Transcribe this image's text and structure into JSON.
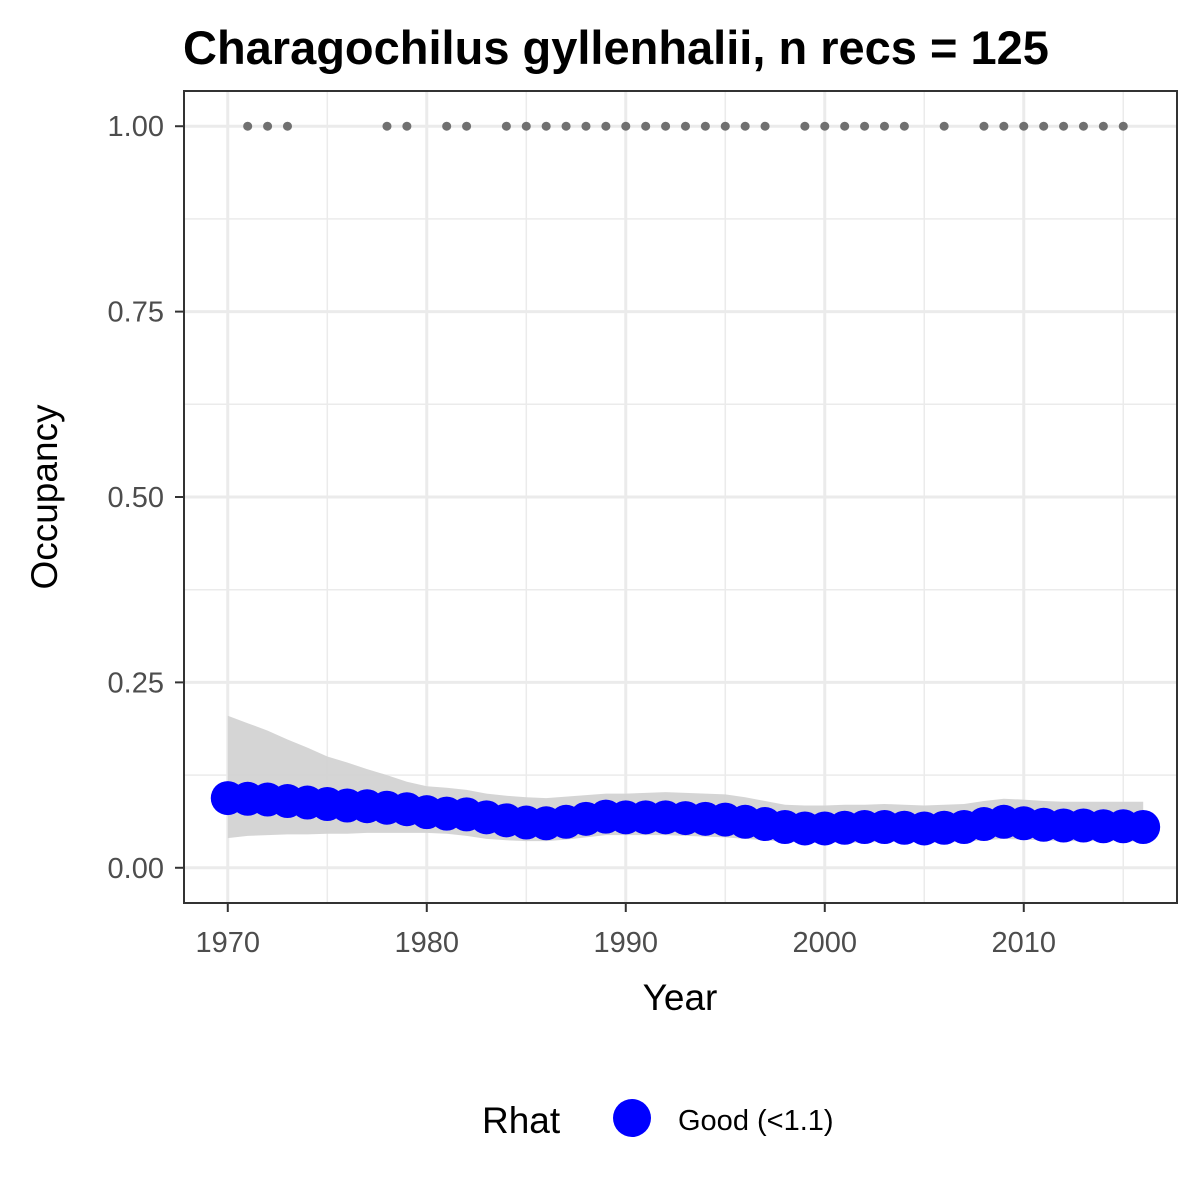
{
  "chart_data": {
    "type": "line",
    "title": "Charagochilus gyllenhalii, n recs = 125",
    "xlabel": "Year",
    "ylabel": "Occupancy",
    "xlim": [
      1967.8,
      2017.7
    ],
    "ylim": [
      -0.0475,
      1.0475
    ],
    "x_ticks": [
      1970,
      1980,
      1990,
      2000,
      2010
    ],
    "x_tick_labels": [
      "1970",
      "1980",
      "1990",
      "2000",
      "2010"
    ],
    "y_ticks": [
      0,
      0.25,
      0.5,
      0.75,
      1.0
    ],
    "y_tick_labels": [
      "0.00",
      "0.25",
      "0.50",
      "0.75",
      "1.00"
    ],
    "grid": true,
    "legend": {
      "position": "bottom",
      "title": "Rhat",
      "entries": [
        {
          "label": "Good (<1.1)",
          "color": "#0000ff"
        }
      ]
    },
    "colors": {
      "estimate": "#0000ff",
      "ribbon": "#d3d3d3",
      "records": "#707070",
      "grid": "#ebebeb",
      "panel_border": "#333333"
    },
    "series": [
      {
        "name": "Good (<1.1)",
        "x": [
          1970,
          1971,
          1972,
          1973,
          1974,
          1975,
          1976,
          1977,
          1978,
          1979,
          1980,
          1981,
          1982,
          1983,
          1984,
          1985,
          1986,
          1987,
          1988,
          1989,
          1990,
          1991,
          1992,
          1993,
          1994,
          1995,
          1996,
          1997,
          1998,
          1999,
          2000,
          2001,
          2002,
          2003,
          2004,
          2005,
          2006,
          2007,
          2008,
          2009,
          2010,
          2011,
          2012,
          2013,
          2014,
          2015,
          2016
        ],
        "y": [
          0.094,
          0.093,
          0.092,
          0.09,
          0.088,
          0.086,
          0.084,
          0.083,
          0.081,
          0.079,
          0.075,
          0.073,
          0.072,
          0.068,
          0.064,
          0.061,
          0.06,
          0.062,
          0.066,
          0.069,
          0.068,
          0.068,
          0.068,
          0.067,
          0.066,
          0.065,
          0.062,
          0.059,
          0.055,
          0.053,
          0.053,
          0.054,
          0.055,
          0.055,
          0.054,
          0.053,
          0.054,
          0.055,
          0.059,
          0.062,
          0.06,
          0.058,
          0.057,
          0.057,
          0.056,
          0.056,
          0.055
        ],
        "lower": [
          0.04,
          0.043,
          0.044,
          0.045,
          0.045,
          0.046,
          0.046,
          0.047,
          0.047,
          0.047,
          0.047,
          0.046,
          0.043,
          0.039,
          0.037,
          0.036,
          0.036,
          0.038,
          0.041,
          0.044,
          0.044,
          0.044,
          0.044,
          0.043,
          0.042,
          0.041,
          0.039,
          0.037,
          0.035,
          0.034,
          0.034,
          0.034,
          0.034,
          0.035,
          0.035,
          0.034,
          0.034,
          0.035,
          0.037,
          0.039,
          0.038,
          0.037,
          0.036,
          0.036,
          0.036,
          0.036,
          0.035
        ],
        "upper": [
          0.205,
          0.195,
          0.185,
          0.173,
          0.162,
          0.15,
          0.142,
          0.133,
          0.125,
          0.116,
          0.11,
          0.108,
          0.105,
          0.1,
          0.097,
          0.095,
          0.094,
          0.096,
          0.098,
          0.1,
          0.1,
          0.101,
          0.102,
          0.101,
          0.1,
          0.099,
          0.095,
          0.09,
          0.085,
          0.084,
          0.084,
          0.085,
          0.085,
          0.086,
          0.085,
          0.084,
          0.085,
          0.086,
          0.09,
          0.093,
          0.092,
          0.09,
          0.089,
          0.089,
          0.089,
          0.089,
          0.089
        ]
      }
    ],
    "records": {
      "y": 1.0,
      "x": [
        1971,
        1972,
        1973,
        1978,
        1979,
        1981,
        1982,
        1984,
        1985,
        1986,
        1987,
        1988,
        1989,
        1990,
        1991,
        1992,
        1993,
        1994,
        1995,
        1996,
        1997,
        1999,
        2000,
        2001,
        2002,
        2003,
        2004,
        2006,
        2008,
        2009,
        2010,
        2011,
        2012,
        2013,
        2014,
        2015
      ]
    }
  }
}
